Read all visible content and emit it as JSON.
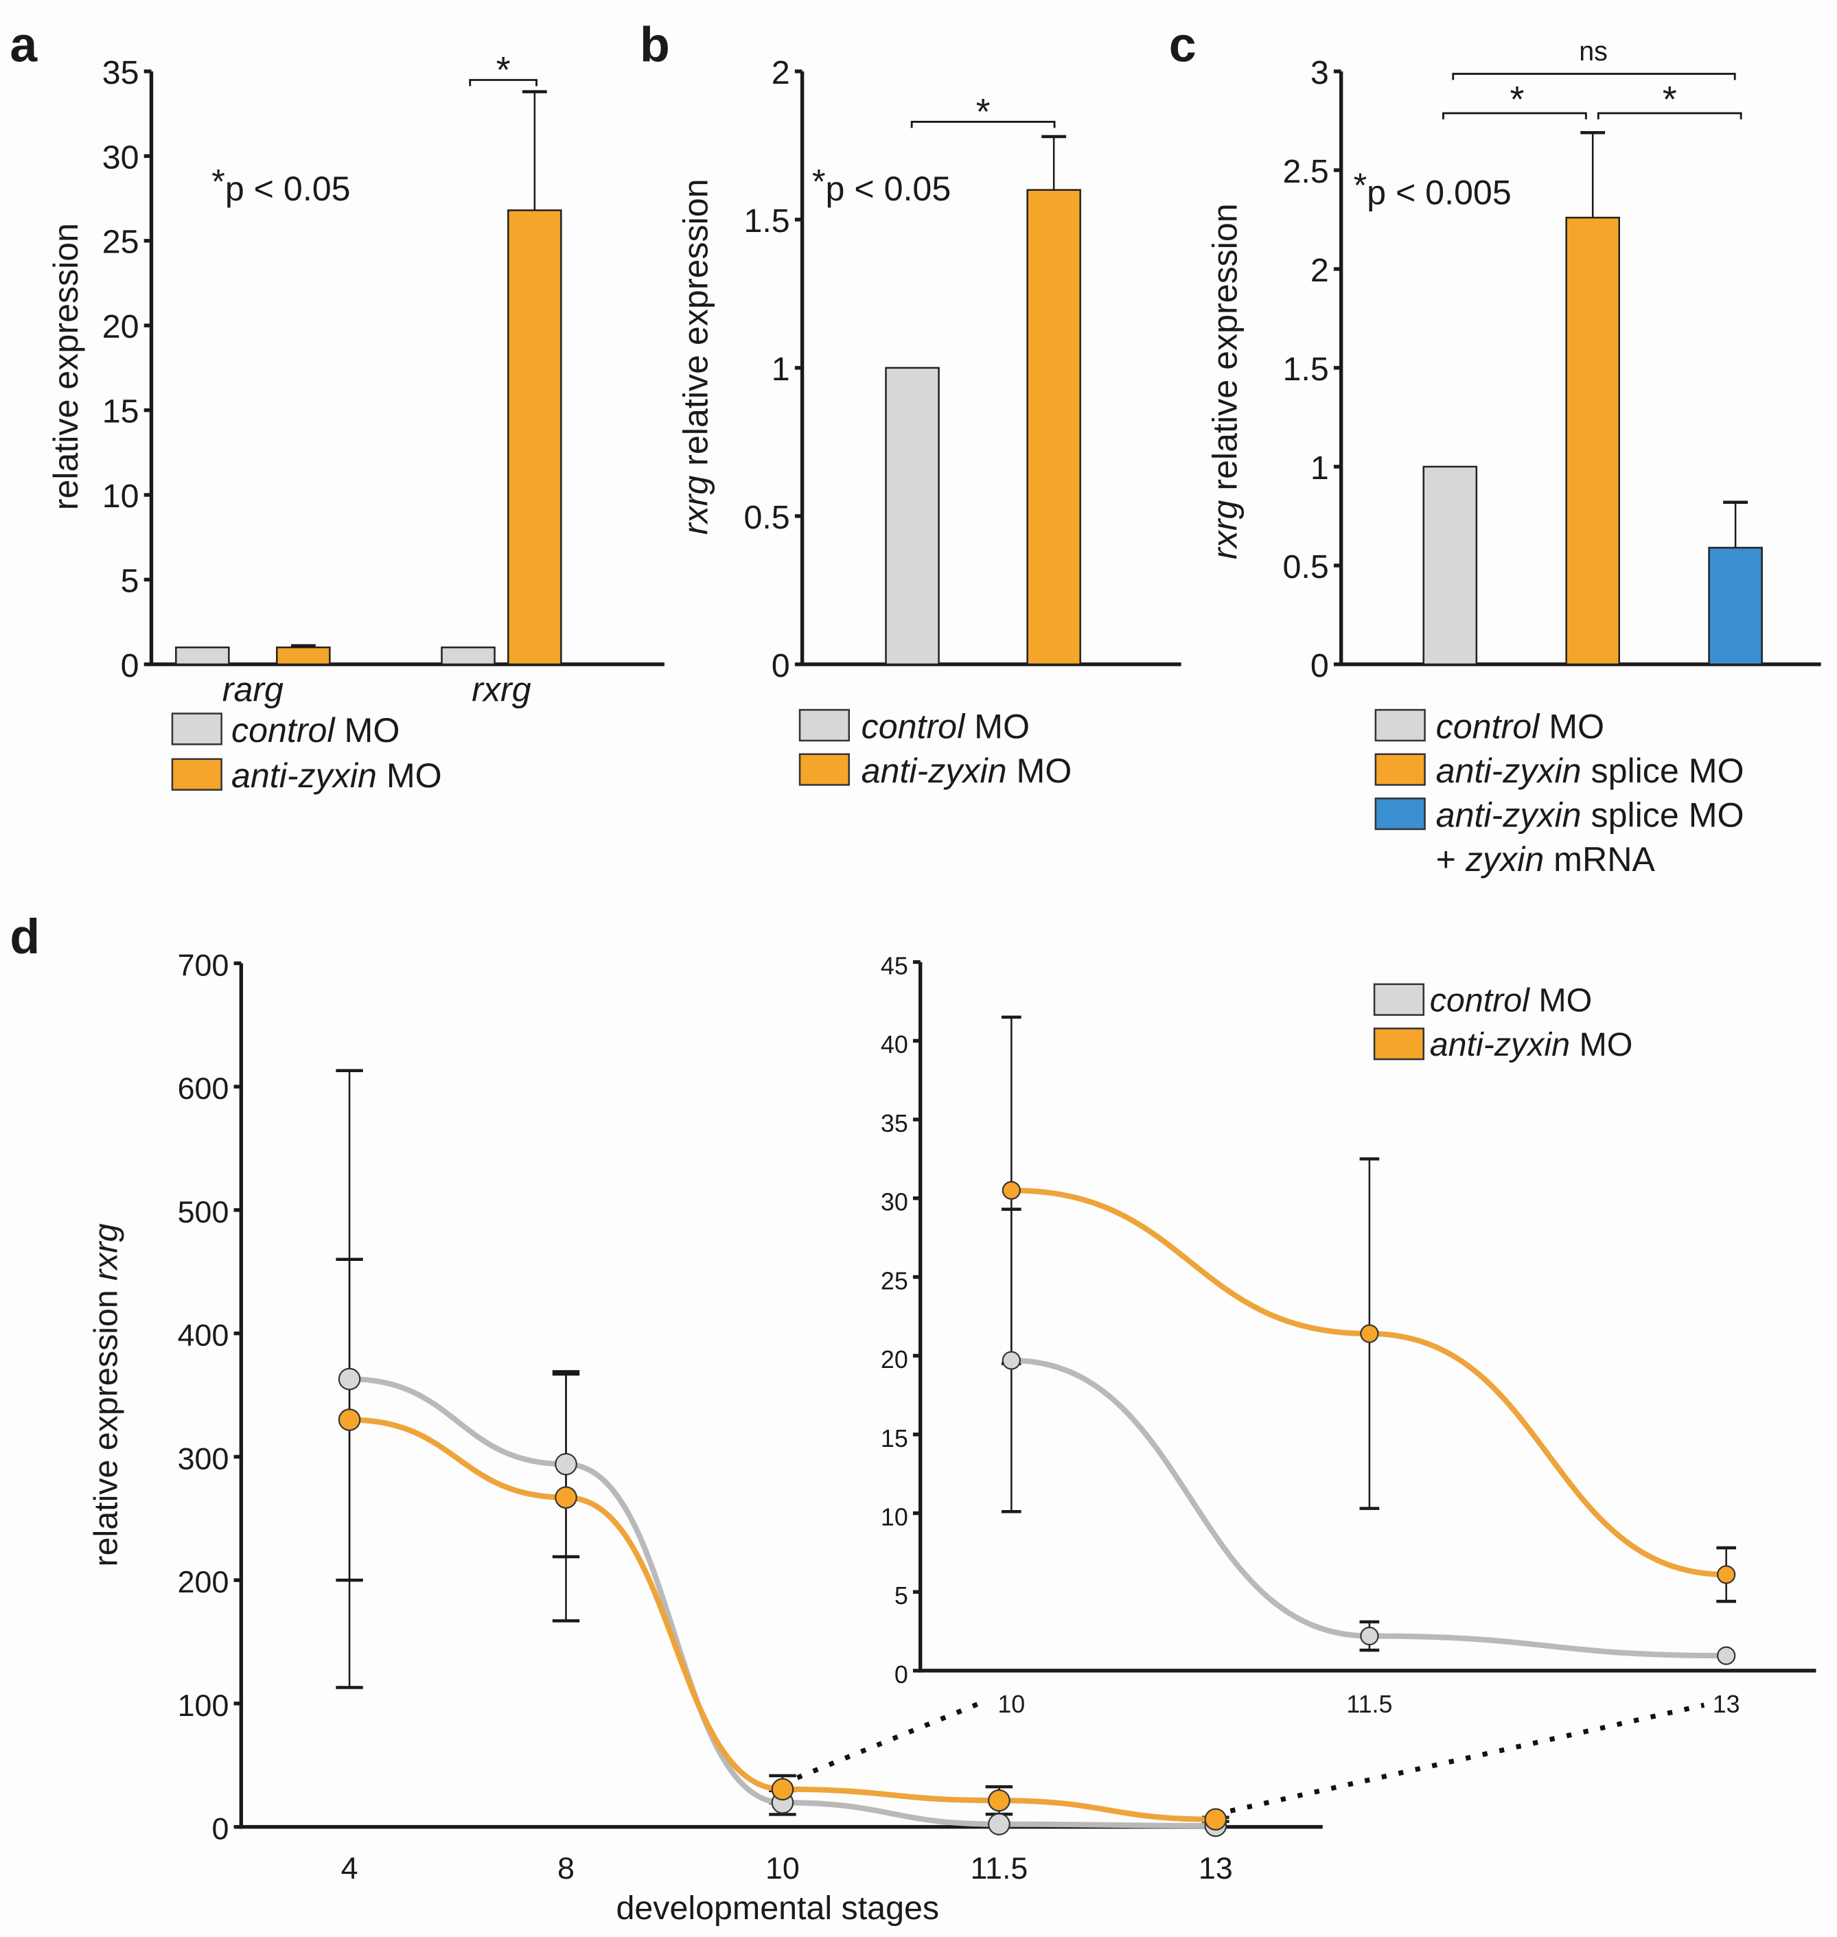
{
  "colors": {
    "control": "#d6d8d8",
    "anti_zyxin": "#f5a52a",
    "rescue": "#3a8fd0",
    "control_line": "#b9b9b9",
    "anti_zyxin_line": "#eea43a"
  },
  "chart_data": [
    {
      "panel": "a",
      "type": "bar",
      "title": "",
      "xlabel": "",
      "ylabel": "relative expression",
      "ylim": [
        0,
        35
      ],
      "yticks": [
        0,
        5,
        10,
        15,
        20,
        25,
        30,
        35
      ],
      "ytick_labels": [
        "0",
        "5",
        "10",
        "15",
        "20",
        "25",
        "30",
        "35"
      ],
      "categories": [
        "rarg",
        "rxrg"
      ],
      "series": [
        {
          "name": "control MO",
          "name_italic": "control",
          "name_rest": " MO",
          "color_key": "control",
          "values": [
            1.0,
            1.0
          ],
          "errors": [
            null,
            null
          ]
        },
        {
          "name": "anti-zyxin MO",
          "name_italic": "anti-zyxin",
          "name_rest": " MO",
          "color_key": "anti_zyxin",
          "values": [
            1.0,
            26.8
          ],
          "errors": [
            0.1,
            7.0
          ]
        }
      ],
      "annotation": {
        "star": "*",
        "text": "p < 0.05"
      },
      "significance": [
        {
          "category": "rxrg",
          "label": "*"
        }
      ],
      "legend": "bottom-left"
    },
    {
      "panel": "b",
      "type": "bar",
      "title": "",
      "xlabel": "",
      "ylabel_italic": "rxrg",
      "ylabel_rest": " relative expression",
      "ylim": [
        0,
        2
      ],
      "yticks": [
        0,
        0.5,
        1,
        1.5,
        2
      ],
      "ytick_labels": [
        "0",
        "0.5",
        "1",
        "1.5",
        "2"
      ],
      "categories": [
        "control MO",
        "anti-zyxin MO"
      ],
      "series": [
        {
          "name": "control MO",
          "name_italic": "control",
          "name_rest": " MO",
          "color_key": "control",
          "values": [
            1.0
          ],
          "errors": [
            null
          ]
        },
        {
          "name": "anti-zyxin MO",
          "name_italic": "anti-zyxin",
          "name_rest": " MO",
          "color_key": "anti_zyxin",
          "values": [
            1.6
          ],
          "errors": [
            0.18
          ]
        }
      ],
      "annotation": {
        "star": "*",
        "text": "p < 0.05"
      },
      "significance": [
        {
          "between": [
            "control MO",
            "anti-zyxin MO"
          ],
          "label": "*"
        }
      ],
      "legend": "bottom"
    },
    {
      "panel": "c",
      "type": "bar",
      "title": "",
      "xlabel": "",
      "ylabel_italic": "rxrg",
      "ylabel_rest": " relative expression",
      "ylim": [
        0,
        3
      ],
      "yticks": [
        0,
        0.5,
        1,
        1.5,
        2,
        2.5,
        3
      ],
      "ytick_labels": [
        "0",
        "0.5",
        "1",
        "1.5",
        "2",
        "2.5",
        "3"
      ],
      "categories": [
        "control MO",
        "anti-zyxin splice MO",
        "anti-zyxin splice MO + zyxin mRNA"
      ],
      "series": [
        {
          "name": "control MO",
          "name_italic": "control",
          "name_rest": " MO",
          "color_key": "control",
          "values": [
            1.0
          ],
          "errors": [
            null
          ]
        },
        {
          "name": "anti-zyxin splice MO",
          "name_italic": "anti-zyxin",
          "name_rest": " splice MO",
          "color_key": "anti_zyxin",
          "values": [
            2.26
          ],
          "errors": [
            0.43
          ]
        },
        {
          "name": "anti-zyxin splice MO + zyxin mRNA",
          "name_italic": "anti-zyxin",
          "name_rest": " splice MO",
          "name_line2_prefix": "+ ",
          "name_line2_italic": "zyxin",
          "name_line2_rest": " mRNA",
          "color_key": "rescue",
          "values": [
            0.59
          ],
          "errors": [
            0.23
          ]
        }
      ],
      "annotation": {
        "star": "*",
        "text": "p < 0.005"
      },
      "significance": [
        {
          "between": [
            "control MO",
            "anti-zyxin splice MO"
          ],
          "label": "*"
        },
        {
          "between": [
            "anti-zyxin splice MO",
            "anti-zyxin splice MO + zyxin mRNA"
          ],
          "label": "*"
        },
        {
          "between": [
            "control MO",
            "anti-zyxin splice MO + zyxin mRNA"
          ],
          "label": "ns"
        }
      ],
      "legend": "bottom"
    },
    {
      "panel": "d",
      "type": "line",
      "title": "",
      "xlabel": "developmental stages",
      "ylabel_rest": "relative expression ",
      "ylabel_italic": "rxrg",
      "x": [
        "4",
        "8",
        "10",
        "11.5",
        "13"
      ],
      "ylim": [
        0,
        700
      ],
      "yticks": [
        0,
        100,
        200,
        300,
        400,
        500,
        600,
        700
      ],
      "ytick_labels": [
        "0",
        "100",
        "200",
        "300",
        "400",
        "500",
        "600",
        "700"
      ],
      "series": [
        {
          "name": "control MO",
          "color_key": "control",
          "line_key": "control_line",
          "values": [
            363,
            294,
            19.7,
            2.2,
            0.95
          ],
          "errors": [
            250,
            75,
            9.6,
            0.9,
            0
          ]
        },
        {
          "name": "anti-zyxin MO",
          "color_key": "anti_zyxin",
          "line_key": "anti_zyxin_line",
          "values": [
            330,
            267,
            30.5,
            21.4,
            6.1
          ],
          "errors": [
            130,
            100,
            11,
            11.1,
            1.7
          ]
        }
      ],
      "grid": false,
      "inset": {
        "x": [
          "10",
          "11.5",
          "13"
        ],
        "ylim": [
          0,
          45
        ],
        "yticks": [
          0,
          5,
          10,
          15,
          20,
          25,
          30,
          35,
          40,
          45
        ],
        "ytick_labels": [
          "0",
          "5",
          "10",
          "15",
          "20",
          "25",
          "30",
          "35",
          "40",
          "45"
        ],
        "series": [
          {
            "name": "control MO",
            "values": [
              19.7,
              2.2,
              0.95
            ],
            "errors": [
              9.6,
              0.9,
              0
            ]
          },
          {
            "name": "anti-zyxin MO",
            "values": [
              30.5,
              21.4,
              6.1
            ],
            "errors": [
              11,
              11.1,
              1.7
            ]
          }
        ]
      },
      "legend": {
        "placement": "top-right",
        "items": [
          {
            "name_italic": "control",
            "name_rest": " MO",
            "color_key": "control"
          },
          {
            "name_italic": "anti-zyxin",
            "name_rest": " MO",
            "color_key": "anti_zyxin"
          }
        ]
      }
    }
  ]
}
